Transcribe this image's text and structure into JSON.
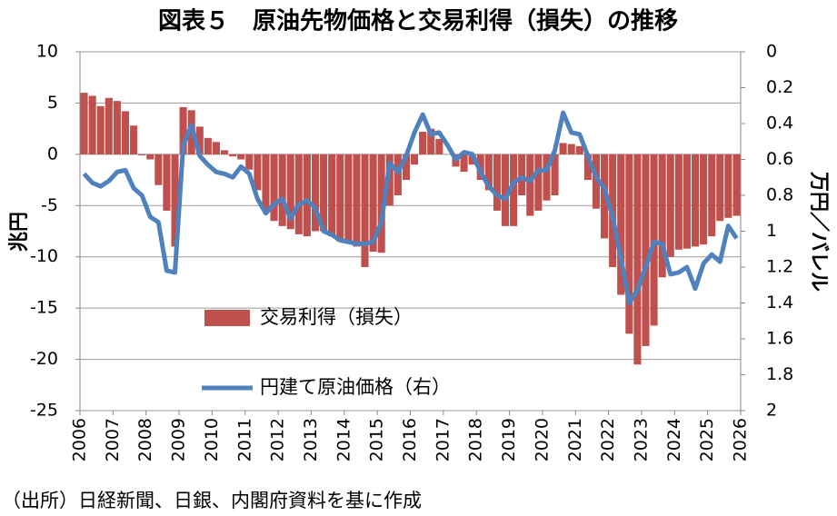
{
  "chart_data": {
    "type": "bar_line",
    "title": "図表５　原油先物価格と交易利得（損失）の推移",
    "ylabel": "兆円",
    "y2label": "万円／バレル",
    "note": "（出所）日経新聞、日銀、内閣府資料を基に作成",
    "xlim": [
      2006,
      2026
    ],
    "xticks": [
      2006,
      2007,
      2008,
      2009,
      2010,
      2011,
      2012,
      2013,
      2014,
      2015,
      2016,
      2017,
      2018,
      2019,
      2020,
      2021,
      2022,
      2023,
      2024,
      2025,
      2026
    ],
    "ylim": [
      -25,
      10
    ],
    "yticks": [
      10,
      5,
      0,
      -5,
      -10,
      -15,
      -20,
      -25
    ],
    "y2lim": [
      0,
      2
    ],
    "y2ticks": [
      0,
      0.2,
      0.4,
      0.6,
      0.8,
      1,
      1.2,
      1.4,
      1.6,
      1.8,
      2
    ],
    "y2_inverted": true,
    "grid": true,
    "x": [
      2006,
      2006.25,
      2006.5,
      2006.75,
      2007,
      2007.25,
      2007.5,
      2007.75,
      2008,
      2008.25,
      2008.5,
      2008.75,
      2009,
      2009.25,
      2009.5,
      2009.75,
      2010,
      2010.25,
      2010.5,
      2010.75,
      2011,
      2011.25,
      2011.5,
      2011.75,
      2012,
      2012.25,
      2012.5,
      2012.75,
      2013,
      2013.25,
      2013.5,
      2013.75,
      2014,
      2014.25,
      2014.5,
      2014.75,
      2015,
      2015.25,
      2015.5,
      2015.75,
      2016,
      2016.25,
      2016.5,
      2016.75,
      2017,
      2017.25,
      2017.5,
      2017.75,
      2018,
      2018.25,
      2018.5,
      2018.75,
      2019,
      2019.25,
      2019.5,
      2019.75,
      2020,
      2020.25,
      2020.5,
      2020.75,
      2021,
      2021.25,
      2021.5,
      2021.75,
      2022,
      2022.25,
      2022.5,
      2022.75,
      2023,
      2023.25,
      2023.5,
      2023.75,
      2024,
      2024.25,
      2024.5,
      2024.75,
      2025,
      2025.25,
      2025.5,
      2025.75
    ],
    "series": [
      {
        "name": "交易利得（損失）",
        "kind": "bar",
        "color": "#c0504d",
        "values": [
          6.0,
          5.7,
          4.7,
          5.5,
          5.2,
          4.2,
          2.8,
          -0.1,
          -0.5,
          -3,
          -5.5,
          -9,
          4.6,
          4.3,
          2.7,
          1.6,
          1.2,
          0.4,
          -0.2,
          -0.5,
          -1.5,
          -3.5,
          -5.5,
          -6.5,
          -7,
          -7.3,
          -7.8,
          -8,
          -7.5,
          -7.5,
          -8,
          -8.5,
          -8.5,
          -9,
          -11,
          -9.5,
          -9.6,
          -5,
          -4,
          -2.5,
          -1,
          2.2,
          2.5,
          1.5,
          0,
          -1.2,
          -1.7,
          -1,
          -2.5,
          -3.5,
          -5.5,
          -7,
          -7,
          -4,
          -6,
          -5.5,
          -4.5,
          -4,
          1.1,
          1,
          0.8,
          -2.5,
          -5.3,
          -8.2,
          -11,
          -13.7,
          -17.5,
          -20.5,
          -18.7,
          -16.7,
          -12,
          -10,
          -9.3,
          -9.2,
          -9,
          -8.8,
          -8,
          -6.5,
          -6.2,
          -6
        ]
      },
      {
        "name": "円建て原油価格（右）",
        "kind": "line",
        "axis": "y2",
        "color": "#4f81bd",
        "values": [
          0.68,
          0.73,
          0.75,
          0.72,
          0.67,
          0.66,
          0.76,
          0.8,
          0.92,
          0.95,
          1.22,
          1.23,
          0.52,
          0.41,
          0.58,
          0.63,
          0.67,
          0.68,
          0.7,
          0.64,
          0.68,
          0.82,
          0.9,
          0.85,
          0.82,
          0.93,
          0.85,
          0.83,
          0.87,
          1.0,
          1.02,
          1.05,
          1.06,
          1.07,
          1.07,
          1.06,
          0.95,
          0.62,
          0.67,
          0.58,
          0.45,
          0.35,
          0.46,
          0.45,
          0.52,
          0.6,
          0.56,
          0.57,
          0.67,
          0.75,
          0.8,
          0.82,
          0.73,
          0.7,
          0.72,
          0.66,
          0.66,
          0.55,
          0.34,
          0.45,
          0.46,
          0.58,
          0.7,
          0.76,
          0.92,
          1.15,
          1.4,
          1.33,
          1.2,
          1.06,
          1.07,
          1.24,
          1.23,
          1.2,
          1.32,
          1.18,
          1.13,
          1.17,
          0.97,
          1.04
        ]
      }
    ]
  }
}
